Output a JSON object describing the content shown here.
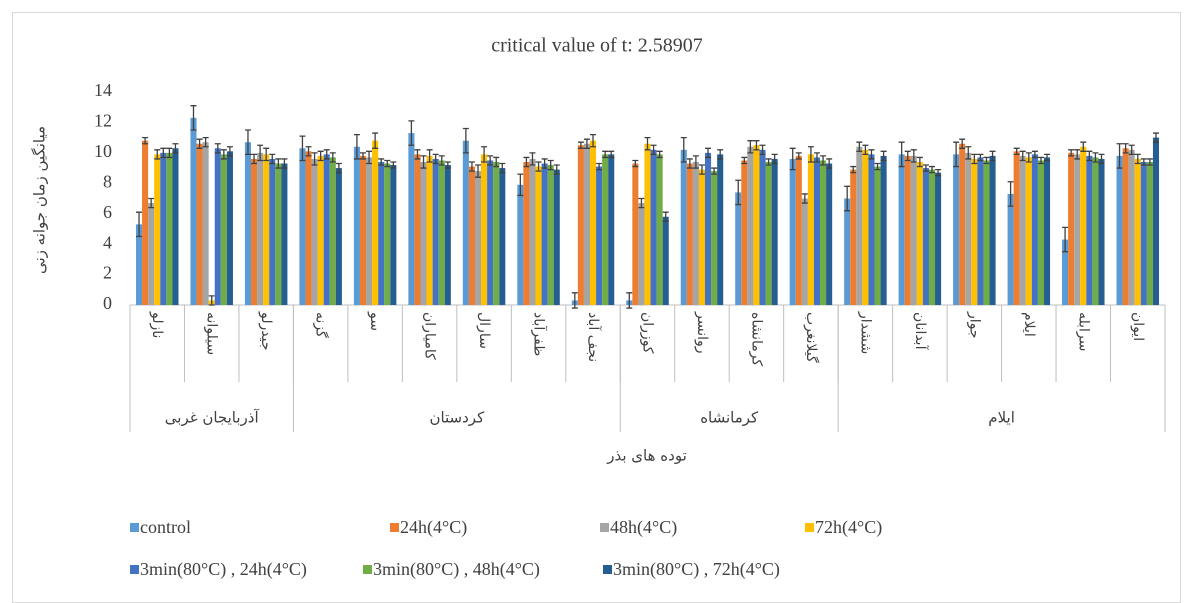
{
  "chart_data": {
    "type": "bar",
    "title": "critical value of t: 2.58907",
    "y_label": "میانگین زمان جوانه زنی",
    "x_label": "توده های بذر",
    "categories": [
      "نازلو",
      "سیلوانه",
      "جیدرلو",
      "گزنه",
      "سو",
      "کامیاران",
      "سارال",
      "ظفرآباد",
      "نجف آباد",
      "کوزران",
      "روانسر",
      "کرمانشاه",
      "گیلانغرب",
      "ششدار",
      "آبدانان",
      "جوار",
      "ایلام",
      "سرابله",
      "ایوان"
    ],
    "groups": [
      {
        "name": "آذربایجان غربی",
        "count": 3
      },
      {
        "name": "کردستان",
        "count": 6
      },
      {
        "name": "کرمانشاه",
        "count": 4
      },
      {
        "name": "ایلام",
        "count": 6
      }
    ],
    "ylim": [
      0,
      14
    ],
    "yticks": [
      0,
      2,
      4,
      6,
      8,
      10,
      12,
      14
    ],
    "series": [
      {
        "name": "control",
        "color": "#5b9bd5",
        "values": [
          5.3,
          12.3,
          10.7,
          10.3,
          10.4,
          11.3,
          10.8,
          7.9,
          0.3,
          0.3,
          10.2,
          7.4,
          9.6,
          7.0,
          9.9,
          9.9,
          7.3,
          4.3,
          9.8
        ],
        "errors": [
          0.8,
          0.8,
          0.8,
          0.8,
          0.8,
          0.8,
          0.8,
          0.7,
          0.5,
          0.5,
          0.8,
          0.8,
          0.7,
          0.8,
          0.8,
          0.8,
          0.8,
          0.8,
          0.8
        ]
      },
      {
        "name": "24h(4°C)",
        "color": "#ed7d31",
        "values": [
          10.8,
          10.6,
          9.6,
          10.1,
          9.8,
          9.9,
          9.1,
          9.4,
          10.5,
          9.3,
          9.3,
          9.5,
          9.8,
          8.9,
          9.8,
          10.6,
          10.1,
          10.0,
          10.3
        ],
        "errors": [
          0.2,
          0.3,
          0.3,
          0.3,
          0.2,
          0.3,
          0.3,
          0.3,
          0.2,
          0.2,
          0.3,
          0.2,
          0.2,
          0.2,
          0.3,
          0.3,
          0.2,
          0.2,
          0.3
        ]
      },
      {
        "name": "48h(4°C)",
        "color": "#a5a5a5",
        "values": [
          6.7,
          10.7,
          10.0,
          9.6,
          9.7,
          9.4,
          8.8,
          9.6,
          10.6,
          6.7,
          9.4,
          10.4,
          7.0,
          10.4,
          9.8,
          10.0,
          9.8,
          9.9,
          10.2
        ],
        "errors": [
          0.3,
          0.3,
          0.5,
          0.4,
          0.4,
          0.4,
          0.4,
          0.4,
          0.3,
          0.3,
          0.4,
          0.4,
          0.3,
          0.3,
          0.4,
          0.4,
          0.3,
          0.3,
          0.3
        ]
      },
      {
        "name": "72h(4°C)",
        "color": "#ffc000",
        "values": [
          9.9,
          0.3,
          9.9,
          9.8,
          10.8,
          9.8,
          9.9,
          9.1,
          10.8,
          10.6,
          8.9,
          10.5,
          9.9,
          10.2,
          9.4,
          9.6,
          9.7,
          10.4,
          9.6
        ],
        "errors": [
          0.3,
          0.3,
          0.4,
          0.3,
          0.5,
          0.4,
          0.5,
          0.3,
          0.4,
          0.4,
          0.3,
          0.3,
          0.5,
          0.3,
          0.3,
          0.3,
          0.3,
          0.3,
          0.3
        ]
      },
      {
        "name": "3min(80°C) , 24h(4°C)",
        "color": "#4472c4",
        "values": [
          10.0,
          10.3,
          9.6,
          9.9,
          9.4,
          9.6,
          9.5,
          9.3,
          9.1,
          10.2,
          10.0,
          10.2,
          9.7,
          9.9,
          9.0,
          9.7,
          9.9,
          9.8,
          9.4
        ],
        "errors": [
          0.3,
          0.3,
          0.3,
          0.3,
          0.2,
          0.3,
          0.3,
          0.3,
          0.2,
          0.3,
          0.3,
          0.3,
          0.3,
          0.3,
          0.2,
          0.2,
          0.2,
          0.3,
          0.2
        ]
      },
      {
        "name": "3min(80°C) , 48h(4°C)",
        "color": "#70ad47",
        "values": [
          10.0,
          9.9,
          9.3,
          9.7,
          9.3,
          9.5,
          9.4,
          9.2,
          9.9,
          9.9,
          8.8,
          9.4,
          9.5,
          9.1,
          8.9,
          9.5,
          9.5,
          9.7,
          9.4
        ],
        "errors": [
          0.3,
          0.3,
          0.3,
          0.3,
          0.2,
          0.3,
          0.3,
          0.3,
          0.2,
          0.2,
          0.2,
          0.2,
          0.3,
          0.2,
          0.2,
          0.2,
          0.2,
          0.3,
          0.2
        ]
      },
      {
        "name": "3min(80°C) , 72h(4°C)",
        "color": "#255e91",
        "values": [
          10.3,
          10.1,
          9.3,
          9.0,
          9.2,
          9.2,
          9.0,
          8.9,
          9.9,
          5.8,
          9.9,
          9.6,
          9.3,
          9.8,
          8.7,
          9.8,
          9.7,
          9.6,
          11.0
        ],
        "errors": [
          0.3,
          0.3,
          0.3,
          0.3,
          0.2,
          0.2,
          0.3,
          0.3,
          0.2,
          0.3,
          0.3,
          0.3,
          0.3,
          0.3,
          0.2,
          0.3,
          0.2,
          0.3,
          0.3
        ]
      }
    ]
  }
}
